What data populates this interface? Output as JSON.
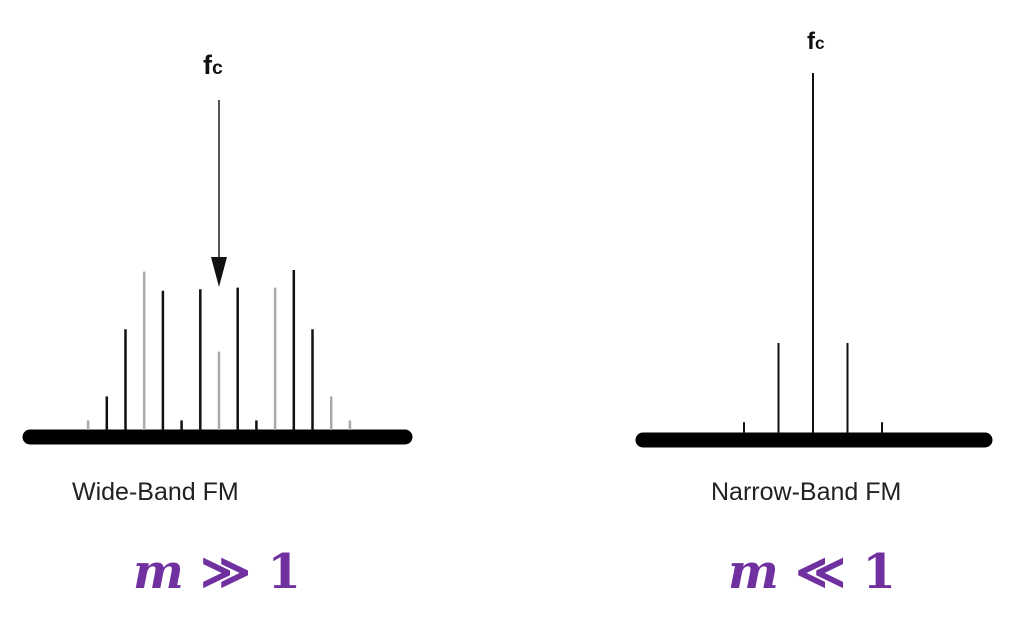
{
  "panels": [
    {
      "fc_label": {
        "main": "f",
        "sub": "c"
      },
      "caption": "Wide-Band FM",
      "condition": {
        "var": "m",
        "op": "≫",
        "val": "1"
      },
      "carrier_indicator": "arrow",
      "components": [
        {
          "offset": -7,
          "amplitude": 0.06,
          "shade": "gray"
        },
        {
          "offset": -6,
          "amplitude": 0.21,
          "shade": "dark"
        },
        {
          "offset": -5,
          "amplitude": 0.63,
          "shade": "dark"
        },
        {
          "offset": -4,
          "amplitude": 0.99,
          "shade": "gray"
        },
        {
          "offset": -3,
          "amplitude": 0.87,
          "shade": "dark"
        },
        {
          "offset": -2,
          "amplitude": 0.06,
          "shade": "dark"
        },
        {
          "offset": -1,
          "amplitude": 0.88,
          "shade": "dark"
        },
        {
          "offset": 0,
          "amplitude": 0.49,
          "shade": "gray"
        },
        {
          "offset": 1,
          "amplitude": 0.89,
          "shade": "dark"
        },
        {
          "offset": 2,
          "amplitude": 0.06,
          "shade": "dark"
        },
        {
          "offset": 3,
          "amplitude": 0.89,
          "shade": "gray"
        },
        {
          "offset": 4,
          "amplitude": 1.0,
          "shade": "dark"
        },
        {
          "offset": 5,
          "amplitude": 0.63,
          "shade": "dark"
        },
        {
          "offset": 6,
          "amplitude": 0.21,
          "shade": "gray"
        },
        {
          "offset": 7,
          "amplitude": 0.06,
          "shade": "gray"
        }
      ]
    },
    {
      "fc_label": {
        "main": "f",
        "sub": "c"
      },
      "caption": "Narrow-Band FM",
      "condition": {
        "var": "m",
        "op": "≪",
        "val": "1"
      },
      "carrier_indicator": "line",
      "components": [
        {
          "offset": -2,
          "amplitude": 0.03,
          "shade": "dark"
        },
        {
          "offset": -1,
          "amplitude": 0.25,
          "shade": "dark"
        },
        {
          "offset": 0,
          "amplitude": 1.0,
          "shade": "dark"
        },
        {
          "offset": 1,
          "amplitude": 0.25,
          "shade": "dark"
        },
        {
          "offset": 2,
          "amplitude": 0.03,
          "shade": "dark"
        }
      ]
    }
  ],
  "colors": {
    "axis": "#000000",
    "line_dark": "#111111",
    "line_gray": "#aaaaaa",
    "math": "#7030A0"
  }
}
